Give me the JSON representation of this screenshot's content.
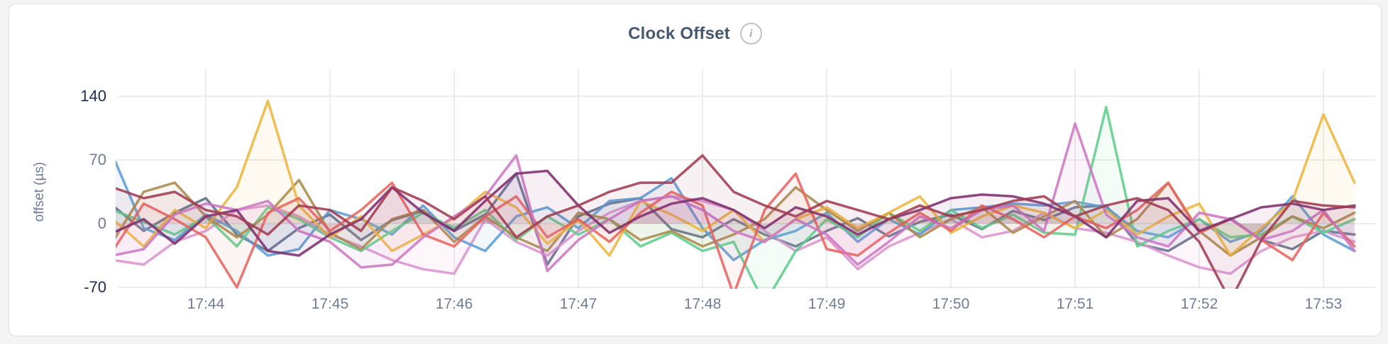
{
  "card": {
    "title": "Clock Offset",
    "info_icon_glyph": "i"
  },
  "palette": {
    "title_color": "#475872",
    "tick_gray": "#6f7d99",
    "tick_dark": "#1b2c4f",
    "grid_color": "#ececec",
    "card_border": "#e1e2e4",
    "page_bg": "#f4f4f5"
  },
  "chart_data": {
    "type": "line",
    "title": "Clock Offset",
    "xlabel": "",
    "ylabel": "offset (µs)",
    "x_tick_labels": [
      "17:44",
      "17:45",
      "17:46",
      "17:47",
      "17:48",
      "17:49",
      "17:50",
      "17:51",
      "17:52",
      "17:53"
    ],
    "y_ticks": [
      {
        "value": 140,
        "label": "140",
        "emphasis": true
      },
      {
        "value": 70,
        "label": "70",
        "emphasis": false
      },
      {
        "value": 0,
        "label": "0",
        "emphasis": false
      },
      {
        "value": -70,
        "label": "-70",
        "emphasis": true
      }
    ],
    "ylim": [
      -70,
      140
    ],
    "grid": true,
    "legend": "none",
    "sample_interval_seconds": 15,
    "x_start_time": "17:43:15",
    "x_end_time": "17:53:15",
    "series": [
      {
        "name": "s1-slate",
        "color": "#5F6C87",
        "values": [
          20,
          -8,
          12,
          28,
          -12,
          -30,
          -5,
          10,
          -18,
          4,
          14,
          -8,
          10,
          55,
          -45,
          8,
          22,
          28,
          -6,
          -15,
          5,
          -12,
          -25,
          -8,
          6,
          -14,
          2,
          10,
          -6,
          14,
          4,
          18,
          20,
          -22,
          -30,
          -10,
          6,
          -18,
          -28,
          -8,
          -12
        ]
      },
      {
        "name": "s2-pink",
        "color": "#DC94CF",
        "values": [
          -40,
          -45,
          -20,
          -8,
          15,
          20,
          8,
          -12,
          -25,
          -40,
          -50,
          -55,
          5,
          -20,
          -35,
          -8,
          12,
          25,
          30,
          25,
          15,
          -8,
          -30,
          -15,
          -50,
          -25,
          -10,
          5,
          -15,
          -8,
          12,
          -5,
          -10,
          -20,
          -35,
          -48,
          -55,
          -30,
          -15,
          -8,
          -20
        ]
      },
      {
        "name": "s3-blue",
        "color": "#5C9DD6",
        "values": [
          75,
          -5,
          -18,
          10,
          -8,
          -35,
          -28,
          15,
          5,
          -12,
          20,
          -15,
          -30,
          8,
          18,
          -5,
          25,
          28,
          50,
          -5,
          -40,
          -18,
          -8,
          12,
          -20,
          5,
          -12,
          15,
          18,
          22,
          20,
          24,
          18,
          -8,
          -15,
          5,
          -20,
          -8,
          30,
          -12,
          -30
        ]
      },
      {
        "name": "s4-green",
        "color": "#5ECE8B",
        "values": [
          15,
          2,
          -12,
          8,
          -25,
          18,
          5,
          -15,
          -30,
          -8,
          12,
          -5,
          15,
          -18,
          8,
          -12,
          5,
          -25,
          -10,
          -30,
          -20,
          -88,
          -30,
          5,
          -15,
          12,
          -8,
          15,
          -5,
          10,
          -10,
          -12,
          128,
          -25,
          -8,
          5,
          -15,
          -12,
          8,
          -10,
          5
        ]
      },
      {
        "name": "s5-olive",
        "color": "#AA8A4D",
        "values": [
          -20,
          35,
          45,
          8,
          -15,
          10,
          48,
          -10,
          -28,
          5,
          15,
          -20,
          8,
          -15,
          -30,
          12,
          5,
          -18,
          -8,
          -25,
          -12,
          5,
          40,
          15,
          -8,
          12,
          -15,
          5,
          18,
          -10,
          8,
          25,
          -15,
          5,
          45,
          -8,
          -35,
          -15,
          8,
          -5,
          12
        ]
      },
      {
        "name": "s6-gold",
        "color": "#EDB63D",
        "values": [
          5,
          -25,
          15,
          -5,
          40,
          135,
          20,
          -15,
          8,
          -30,
          -12,
          6,
          35,
          18,
          -22,
          4,
          -35,
          25,
          10,
          -8,
          15,
          -20,
          5,
          18,
          -5,
          12,
          30,
          -10,
          8,
          20,
          12,
          -5,
          15,
          -12,
          8,
          22,
          -35,
          -5,
          25,
          120,
          45
        ]
      },
      {
        "name": "s7-salmon",
        "color": "#E9645E",
        "values": [
          -30,
          22,
          5,
          -15,
          -70,
          12,
          28,
          -8,
          15,
          45,
          -12,
          -25,
          8,
          30,
          -15,
          5,
          -20,
          12,
          35,
          20,
          -78,
          15,
          55,
          -28,
          -35,
          -10,
          12,
          -8,
          20,
          5,
          -15,
          8,
          -5,
          15,
          45,
          -10,
          5,
          -18,
          -40,
          12,
          -25
        ]
      },
      {
        "name": "s8-orchid",
        "color": "#CD77C4",
        "values": [
          -35,
          -28,
          10,
          22,
          15,
          25,
          -8,
          -20,
          -48,
          -45,
          -15,
          8,
          30,
          75,
          -52,
          -18,
          5,
          25,
          30,
          15,
          -8,
          -20,
          5,
          -12,
          -45,
          -20,
          8,
          -5,
          15,
          20,
          -8,
          110,
          10,
          -15,
          -25,
          12,
          5,
          -18,
          -8,
          15,
          -30
        ]
      },
      {
        "name": "s9-plum",
        "color": "#7E2F6E",
        "values": [
          -10,
          5,
          -22,
          8,
          15,
          -30,
          -35,
          -12,
          5,
          40,
          12,
          -8,
          25,
          55,
          58,
          20,
          -10,
          8,
          22,
          28,
          15,
          -5,
          18,
          8,
          -12,
          5,
          15,
          28,
          32,
          30,
          22,
          8,
          -15,
          25,
          28,
          -8,
          5,
          18,
          22,
          15,
          20
        ]
      },
      {
        "name": "s10-maroon",
        "color": "#A23B52",
        "values": [
          40,
          28,
          35,
          15,
          8,
          -12,
          20,
          15,
          -8,
          40,
          25,
          5,
          30,
          -15,
          8,
          20,
          35,
          45,
          45,
          75,
          35,
          20,
          8,
          25,
          15,
          5,
          20,
          8,
          15,
          25,
          30,
          8,
          20,
          28,
          15,
          -20,
          -85,
          -18,
          25,
          20,
          18
        ]
      }
    ]
  }
}
